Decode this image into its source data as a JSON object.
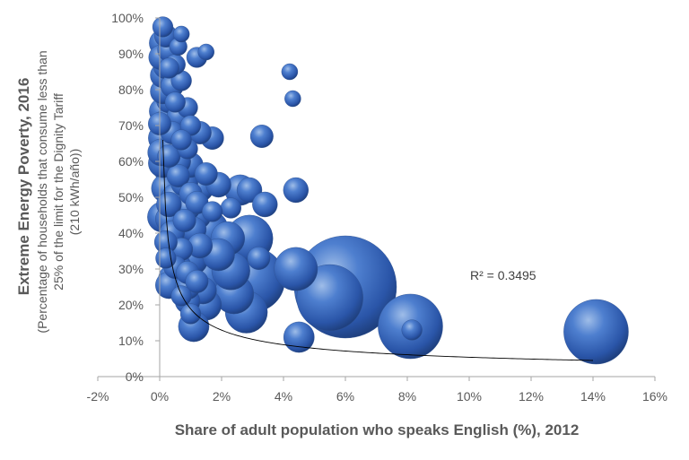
{
  "chart_data": {
    "type": "scatter",
    "title": "",
    "xlabel": "Share of adult population who speaks English (%), 2012",
    "ylabel": "Extreme Energy Poverty, 2016",
    "ylabel_sub": [
      "(Percentage of households that consume less than",
      "25% of the limit for the Dignity Tariff",
      "(210 kWh/año))"
    ],
    "xlim": [
      -2,
      16
    ],
    "ylim": [
      0,
      100
    ],
    "x_ticks": [
      -2,
      0,
      2,
      4,
      6,
      8,
      10,
      12,
      14,
      16
    ],
    "x_tick_labels": [
      "-2%",
      "0%",
      "2%",
      "4%",
      "6%",
      "8%",
      "10%",
      "12%",
      "14%",
      "16%"
    ],
    "y_ticks": [
      0,
      10,
      20,
      30,
      40,
      50,
      60,
      70,
      80,
      90,
      100
    ],
    "y_tick_labels": [
      "0%",
      "10%",
      "20%",
      "30%",
      "40%",
      "50%",
      "60%",
      "70%",
      "80%",
      "90%",
      "100%"
    ],
    "grid": false,
    "bubble_color": "#4472C4",
    "annotation": "R² = 0.3495",
    "trendline": {
      "type": "power",
      "color": "#000000",
      "from": {
        "x": 0.1,
        "y": 66
      },
      "to": {
        "x": 14.0,
        "y": 4.5
      }
    },
    "points": [
      {
        "x": 14.1,
        "y": 12.5,
        "s": 0.4
      },
      {
        "x": 6.0,
        "y": 25.0,
        "s": 1.0
      },
      {
        "x": 5.5,
        "y": 22.0,
        "s": 0.42
      },
      {
        "x": 8.1,
        "y": 14.0,
        "s": 0.4
      },
      {
        "x": 8.15,
        "y": 13.0,
        "s": 0.04
      },
      {
        "x": 3.0,
        "y": 27.0,
        "s": 0.4
      },
      {
        "x": 2.8,
        "y": 18.0,
        "s": 0.17
      },
      {
        "x": 2.9,
        "y": 38.5,
        "s": 0.21
      },
      {
        "x": 4.4,
        "y": 30.0,
        "s": 0.18
      },
      {
        "x": 2.4,
        "y": 23.0,
        "s": 0.15
      },
      {
        "x": 2.3,
        "y": 29.5,
        "s": 0.14
      },
      {
        "x": 1.5,
        "y": 28.0,
        "s": 0.18
      },
      {
        "x": 1.6,
        "y": 41.0,
        "s": 0.14
      },
      {
        "x": 2.2,
        "y": 38.5,
        "s": 0.11
      },
      {
        "x": 1.9,
        "y": 34.0,
        "s": 0.1
      },
      {
        "x": 1.0,
        "y": 33.0,
        "s": 0.12
      },
      {
        "x": 1.5,
        "y": 20.0,
        "s": 0.09
      },
      {
        "x": 1.1,
        "y": 14.0,
        "s": 0.09
      },
      {
        "x": 4.5,
        "y": 11.0,
        "s": 0.09
      },
      {
        "x": 0.7,
        "y": 69.5,
        "s": 0.1
      },
      {
        "x": 2.6,
        "y": 52.0,
        "s": 0.09
      },
      {
        "x": 2.9,
        "y": 52.0,
        "s": 0.06
      },
      {
        "x": 4.4,
        "y": 52.0,
        "s": 0.06
      },
      {
        "x": 3.4,
        "y": 48.0,
        "s": 0.06
      },
      {
        "x": 3.3,
        "y": 67.0,
        "s": 0.05
      },
      {
        "x": 1.9,
        "y": 53.5,
        "s": 0.06
      },
      {
        "x": 1.3,
        "y": 52.5,
        "s": 0.07
      },
      {
        "x": 1.5,
        "y": 56.5,
        "s": 0.05
      },
      {
        "x": 1.7,
        "y": 66.5,
        "s": 0.05
      },
      {
        "x": 1.3,
        "y": 68.0,
        "s": 0.05
      },
      {
        "x": 1.2,
        "y": 89.0,
        "s": 0.04
      },
      {
        "x": 1.5,
        "y": 90.5,
        "s": 0.025
      },
      {
        "x": 0.7,
        "y": 95.5,
        "s": 0.025
      },
      {
        "x": 4.2,
        "y": 85.0,
        "s": 0.025
      },
      {
        "x": 4.3,
        "y": 77.5,
        "s": 0.025
      },
      {
        "x": 3.2,
        "y": 33.0,
        "s": 0.05
      },
      {
        "x": 2.3,
        "y": 47.0,
        "s": 0.04
      },
      {
        "x": 1.2,
        "y": 45.0,
        "s": 0.08
      },
      {
        "x": 1.4,
        "y": 24.0,
        "s": 0.07
      },
      {
        "x": 0.9,
        "y": 21.0,
        "s": 0.06
      },
      {
        "x": 0.9,
        "y": 25.0,
        "s": 0.06
      },
      {
        "x": 0.6,
        "y": 31.0,
        "s": 0.06
      },
      {
        "x": 0.4,
        "y": 27.5,
        "s": 0.07
      },
      {
        "x": 0.3,
        "y": 25.5,
        "s": 0.07
      },
      {
        "x": 0.4,
        "y": 35.0,
        "s": 0.06
      },
      {
        "x": 0.8,
        "y": 38.0,
        "s": 0.08
      },
      {
        "x": 0.6,
        "y": 42.0,
        "s": 0.07
      },
      {
        "x": 0.3,
        "y": 44.0,
        "s": 0.07
      },
      {
        "x": 0.1,
        "y": 44.5,
        "s": 0.09
      },
      {
        "x": 0.9,
        "y": 47.0,
        "s": 0.06
      },
      {
        "x": 0.5,
        "y": 50.0,
        "s": 0.07
      },
      {
        "x": 0.8,
        "y": 54.0,
        "s": 0.07
      },
      {
        "x": 0.2,
        "y": 52.5,
        "s": 0.08
      },
      {
        "x": 1.0,
        "y": 59.0,
        "s": 0.06
      },
      {
        "x": 0.6,
        "y": 60.0,
        "s": 0.06
      },
      {
        "x": 0.3,
        "y": 58.0,
        "s": 0.09
      },
      {
        "x": 0.1,
        "y": 59.5,
        "s": 0.08
      },
      {
        "x": 0.05,
        "y": 62.5,
        "s": 0.07
      },
      {
        "x": 0.4,
        "y": 64.0,
        "s": 0.06
      },
      {
        "x": 0.1,
        "y": 66.5,
        "s": 0.08
      },
      {
        "x": 0.2,
        "y": 71.0,
        "s": 0.06
      },
      {
        "x": 0.6,
        "y": 72.5,
        "s": 0.05
      },
      {
        "x": 0.1,
        "y": 74.0,
        "s": 0.07
      },
      {
        "x": 0.3,
        "y": 77.0,
        "s": 0.06
      },
      {
        "x": 0.1,
        "y": 79.5,
        "s": 0.06
      },
      {
        "x": 0.4,
        "y": 81.0,
        "s": 0.05
      },
      {
        "x": 0.1,
        "y": 84.0,
        "s": 0.06
      },
      {
        "x": 0.2,
        "y": 86.5,
        "s": 0.06
      },
      {
        "x": 0.05,
        "y": 89.0,
        "s": 0.06
      },
      {
        "x": 0.3,
        "y": 91.0,
        "s": 0.05
      },
      {
        "x": 0.1,
        "y": 93.0,
        "s": 0.07
      },
      {
        "x": 0.2,
        "y": 95.0,
        "s": 0.05
      },
      {
        "x": 0.1,
        "y": 97.5,
        "s": 0.04
      },
      {
        "x": 0.7,
        "y": 82.5,
        "s": 0.04
      },
      {
        "x": 0.9,
        "y": 75.0,
        "s": 0.04
      },
      {
        "x": 1.0,
        "y": 70.0,
        "s": 0.04
      },
      {
        "x": 0.9,
        "y": 63.5,
        "s": 0.04
      },
      {
        "x": 0.5,
        "y": 87.0,
        "s": 0.04
      },
      {
        "x": 1.1,
        "y": 41.0,
        "s": 0.06
      },
      {
        "x": 1.3,
        "y": 36.5,
        "s": 0.06
      },
      {
        "x": 0.4,
        "y": 40.0,
        "s": 0.06
      },
      {
        "x": 0.7,
        "y": 35.5,
        "s": 0.05
      },
      {
        "x": 0.5,
        "y": 30.5,
        "s": 0.05
      },
      {
        "x": 0.3,
        "y": 48.0,
        "s": 0.06
      },
      {
        "x": 0.6,
        "y": 56.0,
        "s": 0.05
      },
      {
        "x": 0.4,
        "y": 68.0,
        "s": 0.05
      },
      {
        "x": 0.0,
        "y": 70.5,
        "s": 0.05
      },
      {
        "x": 0.5,
        "y": 76.5,
        "s": 0.04
      },
      {
        "x": 0.3,
        "y": 86.0,
        "s": 0.04
      },
      {
        "x": 0.6,
        "y": 92.0,
        "s": 0.03
      },
      {
        "x": 1.0,
        "y": 51.0,
        "s": 0.05
      },
      {
        "x": 1.2,
        "y": 48.5,
        "s": 0.05
      },
      {
        "x": 0.8,
        "y": 43.5,
        "s": 0.05
      },
      {
        "x": 1.7,
        "y": 46.0,
        "s": 0.04
      },
      {
        "x": 0.9,
        "y": 29.0,
        "s": 0.05
      },
      {
        "x": 1.2,
        "y": 26.5,
        "s": 0.05
      },
      {
        "x": 0.7,
        "y": 22.5,
        "s": 0.04
      },
      {
        "x": 1.0,
        "y": 17.5,
        "s": 0.04
      },
      {
        "x": 0.2,
        "y": 37.5,
        "s": 0.05
      },
      {
        "x": 0.2,
        "y": 33.0,
        "s": 0.04
      },
      {
        "x": 0.7,
        "y": 66.0,
        "s": 0.04
      },
      {
        "x": 0.3,
        "y": 61.5,
        "s": 0.05
      }
    ]
  }
}
